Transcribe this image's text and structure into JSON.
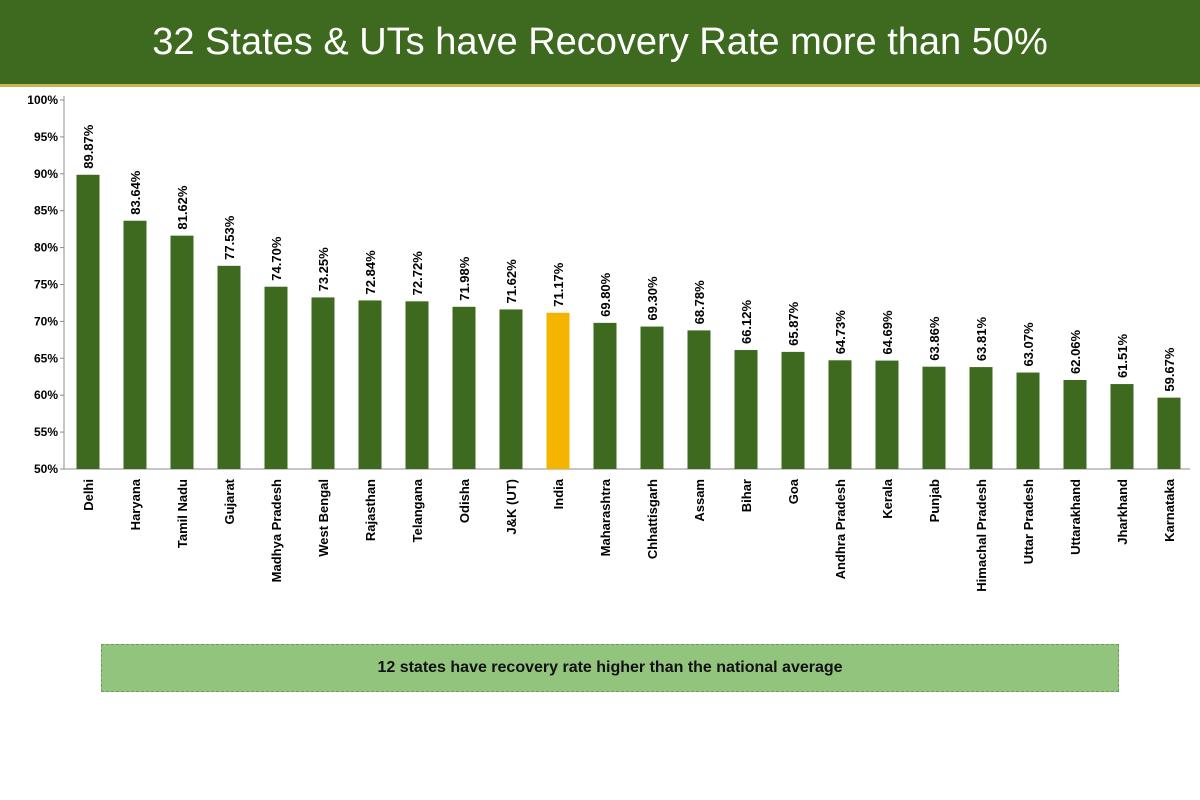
{
  "header": {
    "title": "32 States & UTs have Recovery Rate more than 50%"
  },
  "note": {
    "text": "12 states have recovery rate higher than the national average"
  },
  "colors": {
    "bar": "#3d6a1f",
    "highlight": "#f4b400",
    "title_background": "#3d6a1f",
    "note_background": "#93c47d"
  },
  "chart_data": {
    "type": "bar",
    "categories": [
      "Delhi",
      "Haryana",
      "Tamil Nadu",
      "Gujarat",
      "Madhya Pradesh",
      "West Bengal",
      "Rajasthan",
      "Telangana",
      "Odisha",
      "J&K (UT)",
      "India",
      "Maharashtra",
      "Chhattisgarh",
      "Assam",
      "Bihar",
      "Goa",
      "Andhra Pradesh",
      "Kerala",
      "Punjab",
      "Himachal Pradesh",
      "Uttar Pradesh",
      "Uttarakhand",
      "Jharkhand",
      "Karnataka"
    ],
    "values": [
      89.87,
      83.64,
      81.62,
      77.53,
      74.7,
      73.25,
      72.84,
      72.72,
      71.98,
      71.62,
      71.17,
      69.8,
      69.3,
      68.78,
      66.12,
      65.87,
      64.73,
      64.69,
      63.86,
      63.81,
      63.07,
      62.06,
      61.51,
      59.67
    ],
    "value_labels": [
      "89.87%",
      "83.64%",
      "81.62%",
      "77.53%",
      "74.70%",
      "73.25%",
      "72.84%",
      "72.72%",
      "71.98%",
      "71.62%",
      "71.17%",
      "69.80%",
      "69.30%",
      "68.78%",
      "66.12%",
      "65.87%",
      "64.73%",
      "64.69%",
      "63.86%",
      "63.81%",
      "63.07%",
      "62.06%",
      "61.51%",
      "59.67%"
    ],
    "highlight_category": "India",
    "ylim": [
      50,
      100
    ],
    "yticks": [
      50,
      55,
      60,
      65,
      70,
      75,
      80,
      85,
      90,
      95,
      100
    ],
    "ytick_labels": [
      "50%",
      "55%",
      "60%",
      "65%",
      "70%",
      "75%",
      "80%",
      "85%",
      "90%",
      "95%",
      "100%"
    ],
    "grid": false,
    "legend": "none",
    "xlabel": "",
    "ylabel": ""
  }
}
